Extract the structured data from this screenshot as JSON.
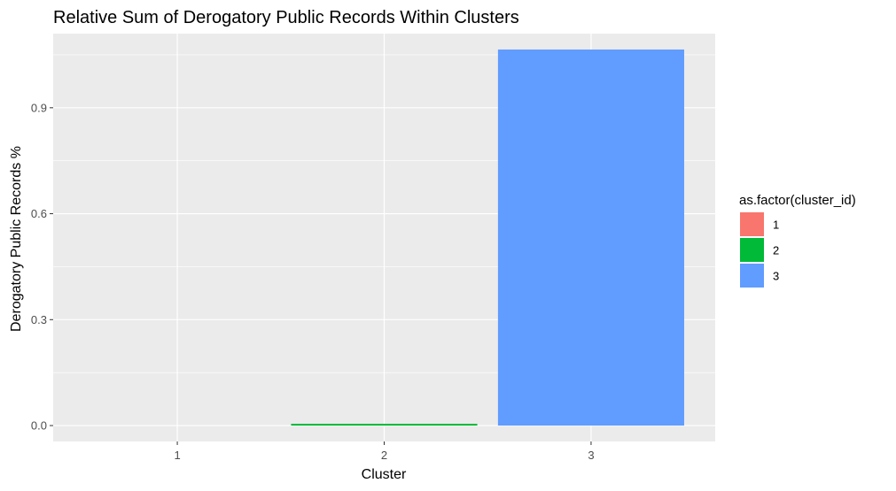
{
  "chart_data": {
    "type": "bar",
    "title": "Relative Sum of Derogatory Public Records Within Clusters",
    "xlabel": "Cluster",
    "ylabel": "Derogatory Public Records %",
    "categories": [
      "1",
      "2",
      "3"
    ],
    "values": [
      0.0,
      0.005,
      1.065
    ],
    "colors": [
      "#F8766D",
      "#00BA38",
      "#619CFF"
    ],
    "ylim": [
      -0.045,
      1.11
    ],
    "yticks": [
      0.0,
      0.3,
      0.6,
      0.9
    ],
    "ytick_labels": [
      "0.0",
      "0.3",
      "0.6",
      "0.9"
    ],
    "panel_background": "#EBEBEB",
    "grid": true,
    "legend": {
      "title": "as.factor(cluster_id)",
      "position": "right",
      "items": [
        {
          "label": "1",
          "color": "#F8766D"
        },
        {
          "label": "2",
          "color": "#00BA38"
        },
        {
          "label": "3",
          "color": "#619CFF"
        }
      ]
    }
  }
}
